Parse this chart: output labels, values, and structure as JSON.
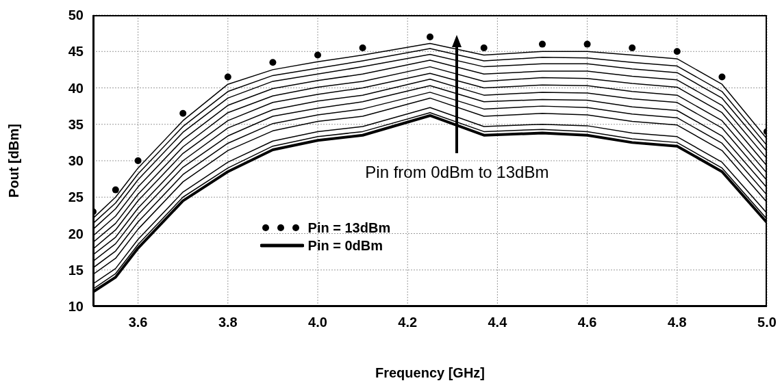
{
  "chart_data": {
    "type": "line",
    "xlabel": "Frequency [GHz]",
    "ylabel": "Pout [dBm]",
    "x": [
      3.5,
      3.55,
      3.6,
      3.7,
      3.8,
      3.9,
      4.0,
      4.1,
      4.25,
      4.37,
      4.5,
      4.6,
      4.7,
      4.8,
      4.9,
      5.0
    ],
    "xlim": [
      3.5,
      5.0
    ],
    "xticks": [
      3.6,
      3.8,
      {
        "value": 4,
        "label": "4.0"
      },
      4.2,
      4.4,
      4.6,
      4.8,
      {
        "value": 5,
        "label": "5.0"
      }
    ],
    "ylim": [
      10,
      50
    ],
    "yticks": [
      10,
      15,
      20,
      25,
      30,
      35,
      40,
      45,
      50
    ],
    "grid": true,
    "legend": "bottom",
    "marker": "none",
    "line_style": "solid",
    "annotations": [
      "Pin from 0dBm to 13dBm"
    ],
    "series": [
      {
        "name": "Pin = 0dBm",
        "color": "#000000",
        "values": [
          12,
          14,
          18,
          24.5,
          28.5,
          31.5,
          32.8,
          33.5,
          36.2,
          33.5,
          33.8,
          33.5,
          32.5,
          32,
          28.5,
          21.5
        ]
      },
      {
        "color": "#000000",
        "values": [
          12.4,
          14.5,
          18.5,
          25,
          29,
          32,
          33.3,
          34,
          36.6,
          34,
          34.3,
          34,
          33,
          32.5,
          29,
          22
        ]
      },
      {
        "color": "#000000",
        "values": [
          13.1,
          15.2,
          19.2,
          25.7,
          29.8,
          32.7,
          34,
          34.7,
          37.3,
          34.7,
          35,
          34.8,
          33.8,
          33.3,
          29.8,
          22.8
        ]
      },
      {
        "color": "#000000",
        "values": [
          14.4,
          16.6,
          20.6,
          27.1,
          31.4,
          34.1,
          35.4,
          36.1,
          38.6,
          36.1,
          36.5,
          36.3,
          35.4,
          34.9,
          31.4,
          24.3
        ]
      },
      {
        "color": "#000000",
        "values": [
          15.3,
          17.6,
          21.6,
          28.1,
          32.4,
          35.1,
          36.3,
          37.1,
          39.4,
          37.1,
          37.5,
          37.3,
          36.4,
          35.9,
          32.4,
          25.3
        ]
      },
      {
        "color": "#000000",
        "values": [
          16.2,
          18.6,
          22.6,
          29.1,
          33.4,
          36.1,
          37.2,
          38.1,
          40.3,
          38.1,
          38.4,
          38.3,
          37.4,
          36.9,
          33.4,
          26.3
        ]
      },
      {
        "color": "#000000",
        "values": [
          17.1,
          19.5,
          23.5,
          30,
          34.5,
          37,
          38.2,
          39,
          41.2,
          39,
          39.4,
          39.3,
          38.5,
          38,
          34.5,
          27.3
        ]
      },
      {
        "color": "#000000",
        "values": [
          17.9,
          20.5,
          24.5,
          31,
          35.5,
          38,
          39.1,
          40,
          42,
          40,
          40.4,
          40.3,
          39.5,
          39,
          35.5,
          28.3
        ]
      },
      {
        "color": "#000000",
        "values": [
          18.8,
          21.4,
          25.4,
          31.9,
          36.6,
          38.9,
          40.1,
          40.9,
          42.9,
          40.9,
          41.4,
          41.3,
          40.6,
          40.1,
          36.6,
          29.3
        ]
      },
      {
        "color": "#000000",
        "values": [
          19.7,
          22.4,
          26.4,
          32.9,
          37.6,
          39.9,
          41,
          41.9,
          43.8,
          41.9,
          42.3,
          42.3,
          41.6,
          41.1,
          37.6,
          30.3
        ]
      },
      {
        "color": "#000000",
        "values": [
          20.6,
          23.4,
          27.4,
          33.9,
          38.6,
          40.9,
          41.9,
          42.9,
          44.6,
          42.9,
          43.3,
          43.3,
          42.6,
          42.1,
          38.6,
          31.3
        ]
      },
      {
        "color": "#000000",
        "values": [
          21.4,
          24.2,
          28.2,
          34.7,
          39.5,
          41.7,
          42.7,
          43.7,
          45.4,
          43.7,
          44.2,
          44.1,
          43.5,
          43,
          39.5,
          32.1
        ]
      },
      {
        "color": "#000000",
        "values": [
          22.1,
          25,
          29,
          35.5,
          40.5,
          42.5,
          43.6,
          44.5,
          46.1,
          44.5,
          45,
          45,
          44.5,
          44,
          40.5,
          33
        ]
      },
      {
        "name": "Pin = 13dBm",
        "type": "scatter",
        "marker": "circle",
        "color": "#000000",
        "values": [
          23,
          26,
          30,
          36.5,
          41.5,
          43.5,
          44.5,
          45.5,
          47,
          45.5,
          46,
          46,
          45.5,
          45,
          41.5,
          34
        ]
      }
    ]
  }
}
